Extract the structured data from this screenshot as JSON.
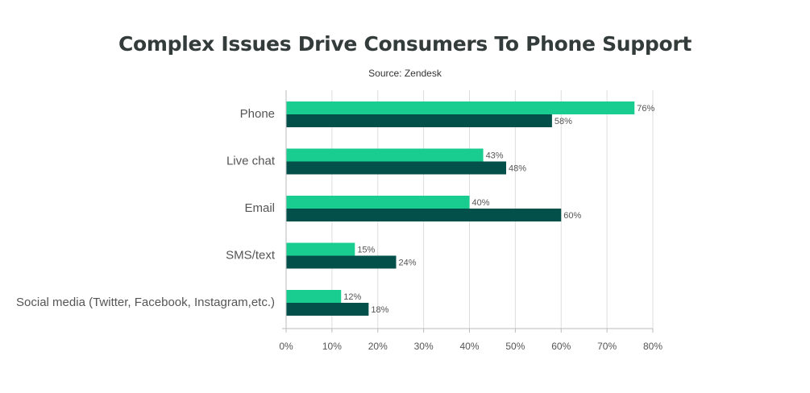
{
  "chart_data": {
    "type": "bar",
    "orientation": "horizontal",
    "title": "Complex Issues Drive Consumers To Phone Support",
    "subtitle": "Source: Zendesk",
    "categories": [
      "Phone",
      "Live chat",
      "Email",
      "SMS/text",
      "Social media (Twitter, Facebook, Instagram,etc.)"
    ],
    "series": [
      {
        "values": [
          76,
          43,
          40,
          15,
          12
        ],
        "color": "#19cc8f"
      },
      {
        "values": [
          58,
          48,
          60,
          24,
          18
        ],
        "color": "#03504a"
      }
    ],
    "value_suffix": "%",
    "xlim": [
      0,
      80
    ],
    "x_ticks": [
      0,
      10,
      20,
      30,
      40,
      50,
      60,
      70,
      80
    ],
    "x_tick_labels": [
      "0%",
      "10%",
      "20%",
      "30%",
      "40%",
      "50%",
      "60%",
      "70%",
      "80%"
    ],
    "grid": true,
    "legend": "none"
  }
}
